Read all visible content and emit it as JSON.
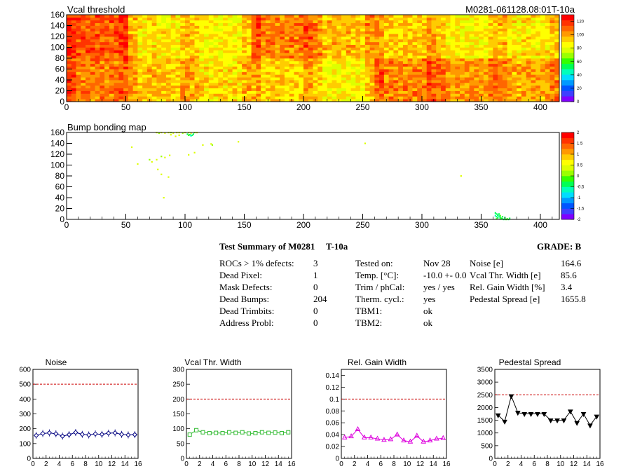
{
  "colors": {
    "map_palette": [
      "#7f00ff",
      "#3f3fff",
      "#0055ff",
      "#0099ff",
      "#00ddff",
      "#00ffbb",
      "#00ff55",
      "#33ff00",
      "#99ff00",
      "#ddff00",
      "#ffff00",
      "#ffcc00",
      "#ff9900",
      "#ff6600",
      "#ff3300",
      "#ff0000"
    ],
    "noise": "#000080",
    "vcal": "#33bb33",
    "gain": "#dd00dd",
    "pedestal": "#000000",
    "limit_line": "#cc0000"
  },
  "chart_data": [
    {
      "type": "heatmap",
      "title": "Vcal threshold",
      "module_label": "M0281-061128.08:01T-10a",
      "xlim": [
        0,
        416
      ],
      "ylim": [
        0,
        160
      ],
      "x_ticks": [
        "0",
        "50",
        "100",
        "150",
        "200",
        "250",
        "300",
        "350",
        "400"
      ],
      "y_ticks": [
        "0",
        "20",
        "40",
        "60",
        "80",
        "100",
        "120",
        "140",
        "160"
      ],
      "z_ticks": [
        "0",
        "20",
        "40",
        "60",
        "80",
        "100",
        "120"
      ],
      "zlim": [
        0,
        130
      ],
      "roc_mean_values_top": [
        112,
        88,
        86,
        106,
        96,
        93,
        86,
        88
      ],
      "roc_mean_values_bottom": [
        106,
        95,
        90,
        92,
        85,
        104,
        101,
        99
      ]
    },
    {
      "type": "heatmap",
      "title": "Bump bonding map",
      "xlim": [
        0,
        416
      ],
      "ylim": [
        0,
        160
      ],
      "x_ticks": [
        "0",
        "50",
        "100",
        "150",
        "200",
        "250",
        "300",
        "350",
        "400"
      ],
      "y_ticks": [
        "0",
        "20",
        "40",
        "60",
        "80",
        "100",
        "120",
        "140",
        "160"
      ],
      "z_ticks": [
        "-2",
        "-1.5",
        "-1",
        "-0.5",
        "0",
        "0.5",
        "1",
        "1.5",
        "2"
      ],
      "zlim": [
        -2,
        2
      ],
      "points": [
        [
          76,
          160,
          0.3
        ],
        [
          78,
          159,
          0.2
        ],
        [
          80,
          160,
          0.4
        ],
        [
          83,
          159,
          0.3
        ],
        [
          86,
          160,
          0.3
        ],
        [
          88,
          160,
          0.2
        ],
        [
          90,
          159,
          0.4
        ],
        [
          93,
          160,
          0.3
        ],
        [
          95,
          160,
          0.3
        ],
        [
          98,
          159,
          0.2
        ],
        [
          100,
          160,
          0.3
        ],
        [
          103,
          160,
          0.4
        ],
        [
          105,
          159,
          0.3
        ],
        [
          108,
          160,
          0.2
        ],
        [
          110,
          160,
          0.3
        ],
        [
          102,
          157,
          -0.3
        ],
        [
          104,
          156,
          -0.5
        ],
        [
          106,
          155,
          -0.4
        ],
        [
          107,
          157,
          -0.3
        ],
        [
          105,
          154,
          -0.6
        ],
        [
          103,
          155,
          -0.2
        ],
        [
          88,
          156,
          0.4
        ],
        [
          95,
          155,
          0.3
        ],
        [
          92,
          153,
          0.4
        ],
        [
          115,
          137,
          0.3
        ],
        [
          122,
          139,
          0.3
        ],
        [
          123,
          137,
          0.2
        ],
        [
          145,
          143,
          0.4
        ],
        [
          55,
          133,
          0.4
        ],
        [
          60,
          102,
          0.3
        ],
        [
          72,
          106,
          0.4
        ],
        [
          70,
          110,
          0.2
        ],
        [
          76,
          110,
          0.3
        ],
        [
          80,
          116,
          0.2
        ],
        [
          87,
          118,
          0.4
        ],
        [
          83,
          114,
          0.3
        ],
        [
          77,
          92,
          0.3
        ],
        [
          80,
          83,
          0.4
        ],
        [
          86,
          78,
          0.3
        ],
        [
          103,
          119,
          0.3
        ],
        [
          108,
          123,
          0.4
        ],
        [
          82,
          40,
          0.4
        ],
        [
          252,
          140,
          0.3
        ],
        [
          333,
          80,
          0.3
        ],
        [
          362,
          12,
          -0.5
        ],
        [
          363,
          10,
          -0.4
        ],
        [
          364,
          8,
          -0.3
        ],
        [
          365,
          6,
          -0.6
        ],
        [
          366,
          4,
          -0.3
        ],
        [
          367,
          2,
          -0.2
        ],
        [
          368,
          1,
          -0.4
        ],
        [
          370,
          3,
          -0.3
        ],
        [
          372,
          1,
          -0.2
        ],
        [
          374,
          2,
          -0.3
        ],
        [
          363,
          5,
          -0.5
        ],
        [
          364,
          3,
          -0.4
        ],
        [
          366,
          1,
          -0.3
        ],
        [
          369,
          0,
          -0.5
        ],
        [
          371,
          0,
          -0.2
        ],
        [
          373,
          0,
          -0.3
        ],
        [
          362,
          7,
          -0.6
        ],
        [
          363,
          1,
          -0.2
        ],
        [
          365,
          10,
          -0.3
        ],
        [
          366,
          7,
          -0.2
        ],
        [
          368,
          5,
          -0.4
        ]
      ]
    },
    {
      "type": "line",
      "title": "Noise",
      "xlim": [
        0,
        16
      ],
      "ylim": [
        0,
        600
      ],
      "x_ticks": [
        "0",
        "2",
        "4",
        "6",
        "8",
        "10",
        "12",
        "14",
        "16"
      ],
      "y_ticks": [
        "0",
        "100",
        "200",
        "300",
        "400",
        "500",
        "600"
      ],
      "limit": 500,
      "x": [
        0.5,
        1.5,
        2.5,
        3.5,
        4.5,
        5.5,
        6.5,
        7.5,
        8.5,
        9.5,
        10.5,
        11.5,
        12.5,
        13.5,
        14.5,
        15.5
      ],
      "values": [
        155,
        168,
        172,
        166,
        150,
        160,
        175,
        162,
        158,
        165,
        162,
        170,
        172,
        162,
        158,
        160
      ],
      "marker": "diamond"
    },
    {
      "type": "line",
      "title": "Vcal Thr. Width",
      "xlim": [
        0,
        16
      ],
      "ylim": [
        0,
        300
      ],
      "x_ticks": [
        "0",
        "2",
        "4",
        "6",
        "8",
        "10",
        "12",
        "14",
        "16"
      ],
      "y_ticks": [
        "0",
        "50",
        "100",
        "150",
        "200",
        "250",
        "300"
      ],
      "limit": 200,
      "x": [
        0.5,
        1.5,
        2.5,
        3.5,
        4.5,
        5.5,
        6.5,
        7.5,
        8.5,
        9.5,
        10.5,
        11.5,
        12.5,
        13.5,
        14.5,
        15.5
      ],
      "values": [
        80,
        95,
        88,
        85,
        86,
        85,
        88,
        86,
        88,
        84,
        85,
        88,
        86,
        87,
        85,
        88
      ],
      "marker": "square"
    },
    {
      "type": "line",
      "title": "Rel. Gain Width",
      "xlim": [
        0,
        16
      ],
      "ylim": [
        0,
        0.15
      ],
      "x_ticks": [
        "0",
        "2",
        "4",
        "6",
        "8",
        "10",
        "12",
        "14",
        "16"
      ],
      "y_ticks": [
        "0",
        "0.02",
        "0.04",
        "0.06",
        "0.08",
        "0.1",
        "0.12",
        "0.14"
      ],
      "limit": 0.1,
      "x": [
        0.5,
        1.5,
        2.5,
        3.5,
        4.5,
        5.5,
        6.5,
        7.5,
        8.5,
        9.5,
        10.5,
        11.5,
        12.5,
        13.5,
        14.5,
        15.5
      ],
      "values": [
        0.035,
        0.037,
        0.049,
        0.035,
        0.035,
        0.033,
        0.031,
        0.032,
        0.04,
        0.03,
        0.028,
        0.038,
        0.028,
        0.03,
        0.033,
        0.034
      ],
      "marker": "triangle"
    },
    {
      "type": "line",
      "title": "Pedestal Spread",
      "xlim": [
        0,
        16
      ],
      "ylim": [
        0,
        3500
      ],
      "x_ticks": [
        "0",
        "2",
        "4",
        "6",
        "8",
        "10",
        "12",
        "14",
        "16"
      ],
      "y_ticks": [
        "0",
        "500",
        "1000",
        "1500",
        "2000",
        "2500",
        "3000",
        "3500"
      ],
      "limit": 2500,
      "x": [
        0.5,
        1.5,
        2.5,
        3.5,
        4.5,
        5.5,
        6.5,
        7.5,
        8.5,
        9.5,
        10.5,
        11.5,
        12.5,
        13.5,
        14.5,
        15.5
      ],
      "values": [
        1700,
        1450,
        2450,
        1800,
        1750,
        1750,
        1750,
        1750,
        1500,
        1500,
        1500,
        1850,
        1400,
        1750,
        1300,
        1650
      ],
      "marker": "triangle-down"
    }
  ],
  "summary": {
    "heading": "Test Summary of M0281",
    "temp_label": "T-10a",
    "grade": "GRADE:  B",
    "col1_labels": [
      "ROCs > 1% defects:",
      "Dead Pixel:",
      "Mask Defects:",
      "Dead Bumps:",
      "Dead Trimbits:",
      "Address Probl:"
    ],
    "col1_values": [
      "3",
      "1",
      "0",
      "204",
      "0",
      "0"
    ],
    "col2_labels": [
      "Tested on:",
      "Temp. [°C]:",
      "Trim / phCal:",
      "Therm. cycl.:",
      "TBM1:",
      "TBM2:"
    ],
    "col2_values": [
      "Nov 28",
      "-10.0 +- 0.0",
      "yes / yes",
      "yes",
      "ok",
      "ok"
    ],
    "col3_labels": [
      "Noise [e]",
      "Vcal Thr. Width [e]",
      "Rel. Gain Width [%]",
      "Pedestal Spread [e]"
    ],
    "col3_values": [
      "164.6",
      "85.6",
      "3.4",
      "1655.8"
    ]
  }
}
